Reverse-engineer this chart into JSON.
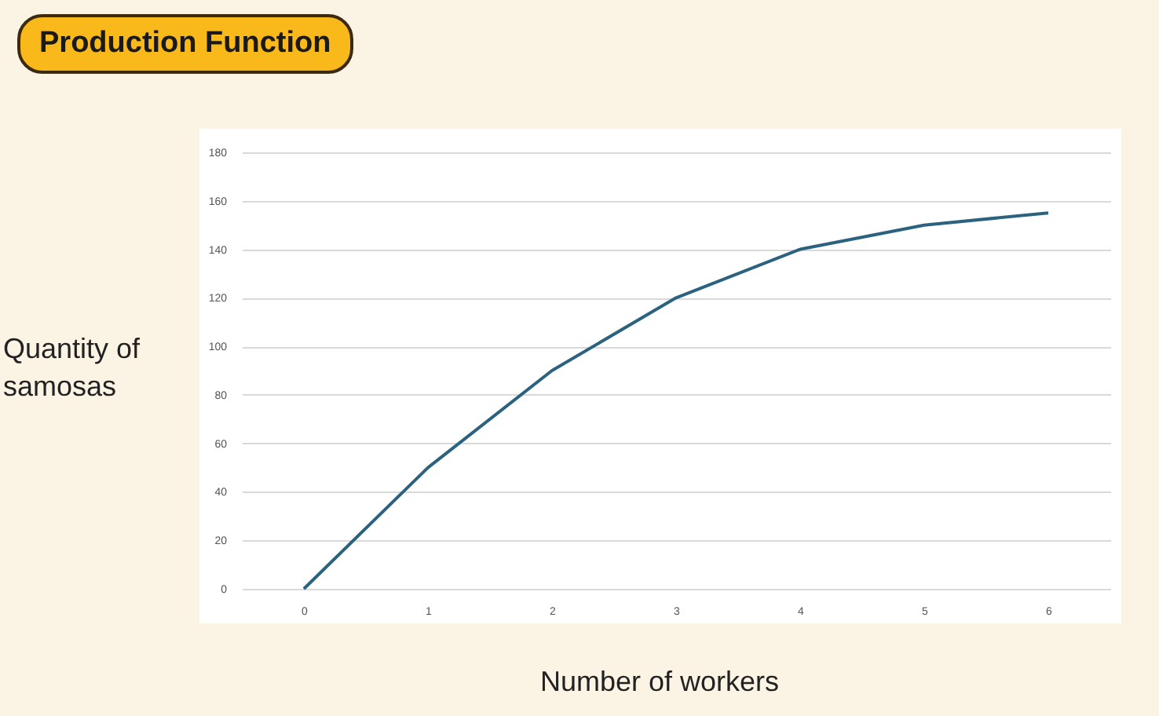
{
  "chart_data": {
    "type": "line",
    "title": "Production Function",
    "xlabel": "Number of workers",
    "ylabel": "Quantity of samosas",
    "categories": [
      "0",
      "1",
      "2",
      "3",
      "4",
      "5",
      "6"
    ],
    "series": [
      {
        "color": "#2b627f",
        "values": [
          0,
          50,
          90,
          120,
          140,
          150,
          155
        ]
      }
    ],
    "ylim": [
      0,
      180
    ],
    "yticks": [
      0,
      20,
      40,
      60,
      80,
      100,
      120,
      140,
      160,
      180
    ],
    "grid": "y",
    "marker": "none",
    "line_style": "solid"
  }
}
